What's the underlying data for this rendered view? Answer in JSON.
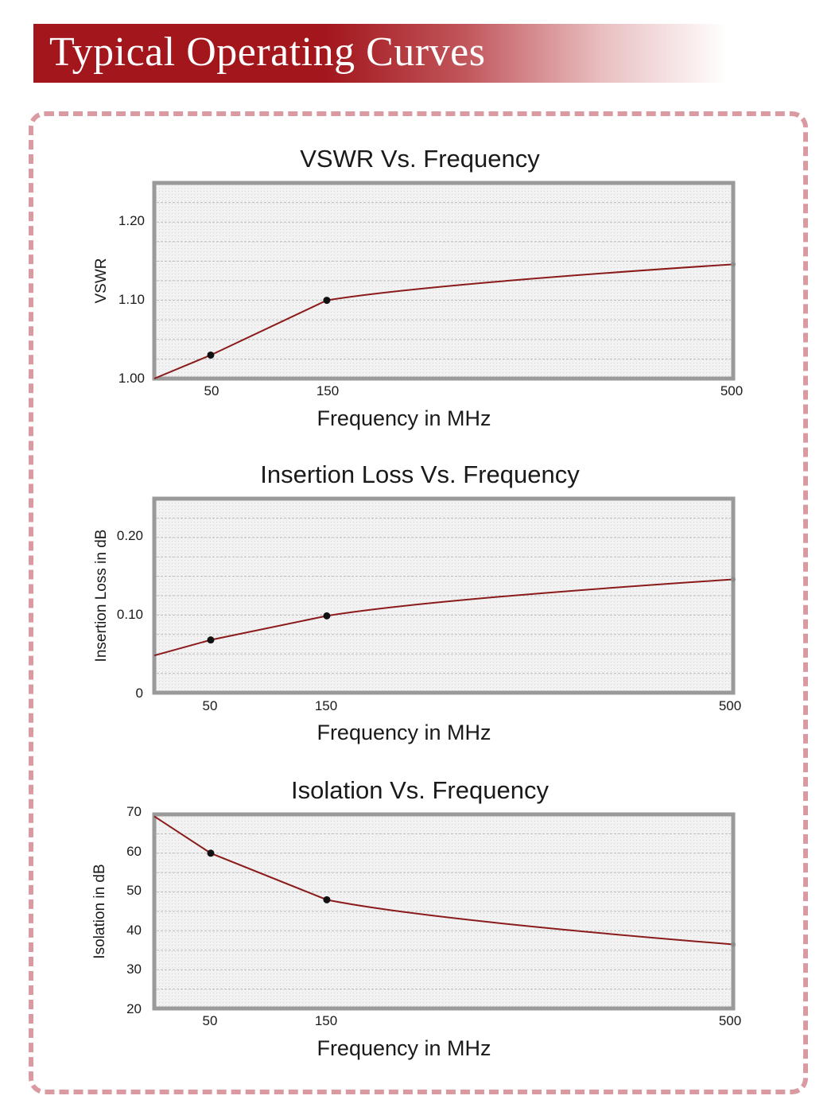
{
  "header": {
    "title": "Typical Operating Curves"
  },
  "chart_data": [
    {
      "type": "line",
      "title": "VSWR Vs. Frequency",
      "xlabel": "Frequency in MHz",
      "ylabel": "VSWR",
      "x_ticks": [
        "50",
        "150",
        "500"
      ],
      "y_ticks": [
        "1.00",
        "1.10",
        "1.20"
      ],
      "ylim": [
        1.0,
        1.25
      ],
      "grid": true,
      "series": [
        {
          "name": "VSWR",
          "color": "#8b1a1a",
          "points": [
            [
              0,
              1.0
            ],
            [
              50,
              1.03
            ],
            [
              150,
              1.1
            ],
            [
              500,
              1.146
            ]
          ],
          "markers": [
            [
              50,
              1.03
            ],
            [
              150,
              1.1
            ],
            [
              500,
              1.146
            ]
          ]
        }
      ]
    },
    {
      "type": "line",
      "title": "Insertion Loss Vs. Frequency",
      "xlabel": "Frequency in MHz",
      "ylabel": "Insertion Loss in dB",
      "x_ticks": [
        "50",
        "150",
        "500"
      ],
      "y_ticks": [
        "0",
        "0.10",
        "0.20"
      ],
      "ylim": [
        0,
        0.25
      ],
      "grid": true,
      "series": [
        {
          "name": "Insertion Loss",
          "color": "#8b1a1a",
          "points": [
            [
              0,
              0.048
            ],
            [
              50,
              0.068
            ],
            [
              150,
              0.099
            ],
            [
              500,
              0.146
            ]
          ],
          "markers": [
            [
              50,
              0.068
            ],
            [
              150,
              0.099
            ],
            [
              500,
              0.146
            ]
          ]
        }
      ]
    },
    {
      "type": "line",
      "title": "Isolation Vs. Frequency",
      "xlabel": "Frequency in MHz",
      "ylabel": "Isolation in dB",
      "x_ticks": [
        "50",
        "150",
        "500"
      ],
      "y_ticks": [
        "20",
        "30",
        "40",
        "50",
        "60",
        "70"
      ],
      "ylim": [
        20,
        70
      ],
      "grid": true,
      "series": [
        {
          "name": "Isolation",
          "color": "#8b1a1a",
          "points": [
            [
              0,
              69.5
            ],
            [
              50,
              60
            ],
            [
              150,
              48
            ],
            [
              500,
              36.5
            ]
          ],
          "markers": [
            [
              50,
              60
            ],
            [
              150,
              48
            ],
            [
              500,
              36.5
            ]
          ]
        }
      ]
    }
  ]
}
